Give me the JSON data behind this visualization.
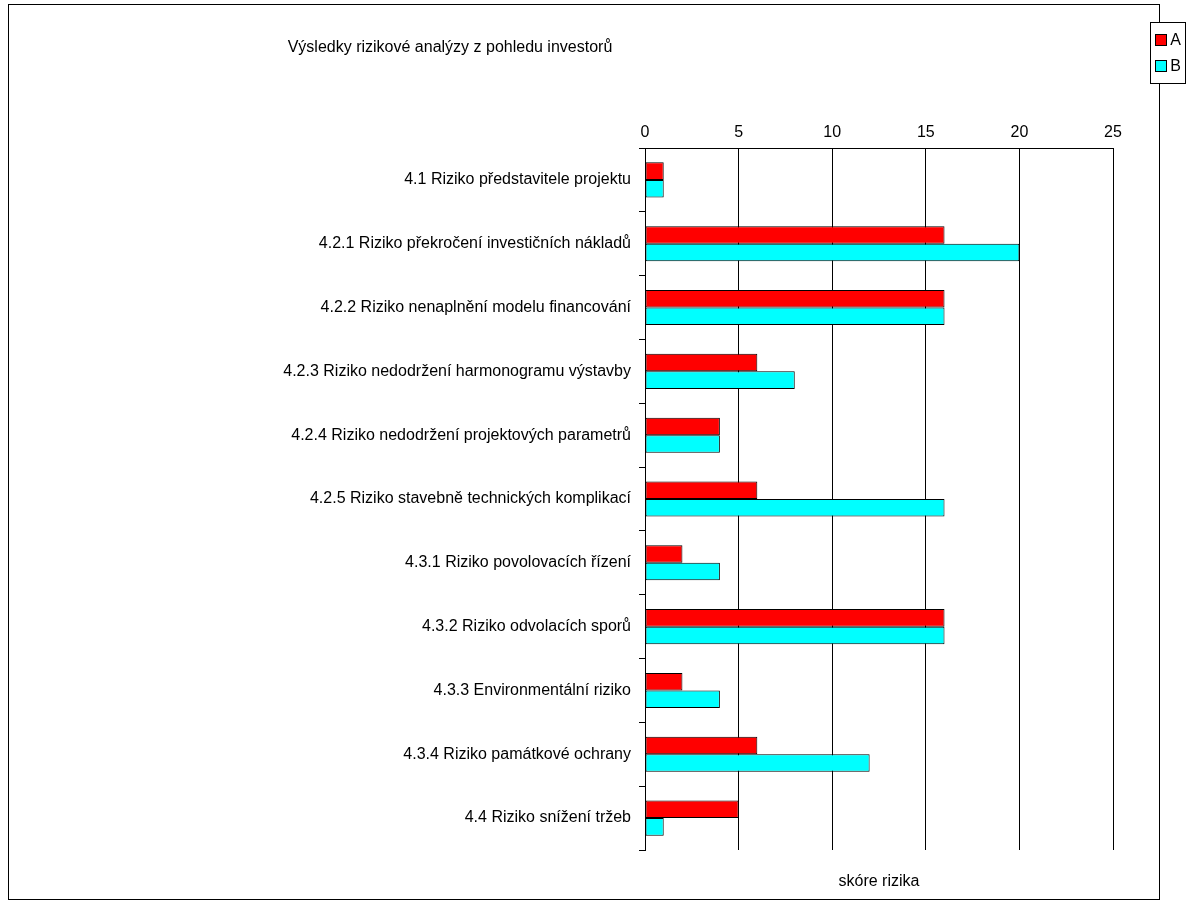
{
  "chart_data": {
    "type": "bar",
    "orientation": "horizontal",
    "title": "Výsledky rizikové analýzy z pohledu investorů",
    "xlabel": "skóre rizika",
    "categories": [
      "4.1 Riziko představitele projektu",
      "4.2.1 Riziko překročení investičních nákladů",
      "4.2.2 Riziko nenaplnění modelu financování",
      "4.2.3 Riziko nedodržení harmonogramu výstavby",
      "4.2.4 Riziko nedodržení projektových parametrů",
      "4.2.5 Riziko stavebně technických komplikací",
      "4.3.1 Riziko povolovacích řízení",
      "4.3.2 Riziko odvolacích sporů",
      "4.3.3 Environmentální riziko",
      "4.3.4 Riziko památkové ochrany",
      "4.4 Riziko snížení tržeb"
    ],
    "series": [
      {
        "name": "A",
        "color": "#ff0000",
        "values": [
          1,
          16,
          16,
          6,
          4,
          6,
          2,
          16,
          2,
          6,
          5
        ]
      },
      {
        "name": "B",
        "color": "#00ffff",
        "values": [
          1,
          20,
          16,
          8,
          4,
          16,
          4,
          16,
          4,
          12,
          1
        ]
      }
    ],
    "xlim": [
      0,
      25
    ],
    "xticks": [
      0,
      5,
      10,
      15,
      20,
      25
    ],
    "grid": "x",
    "legend": "top right"
  }
}
